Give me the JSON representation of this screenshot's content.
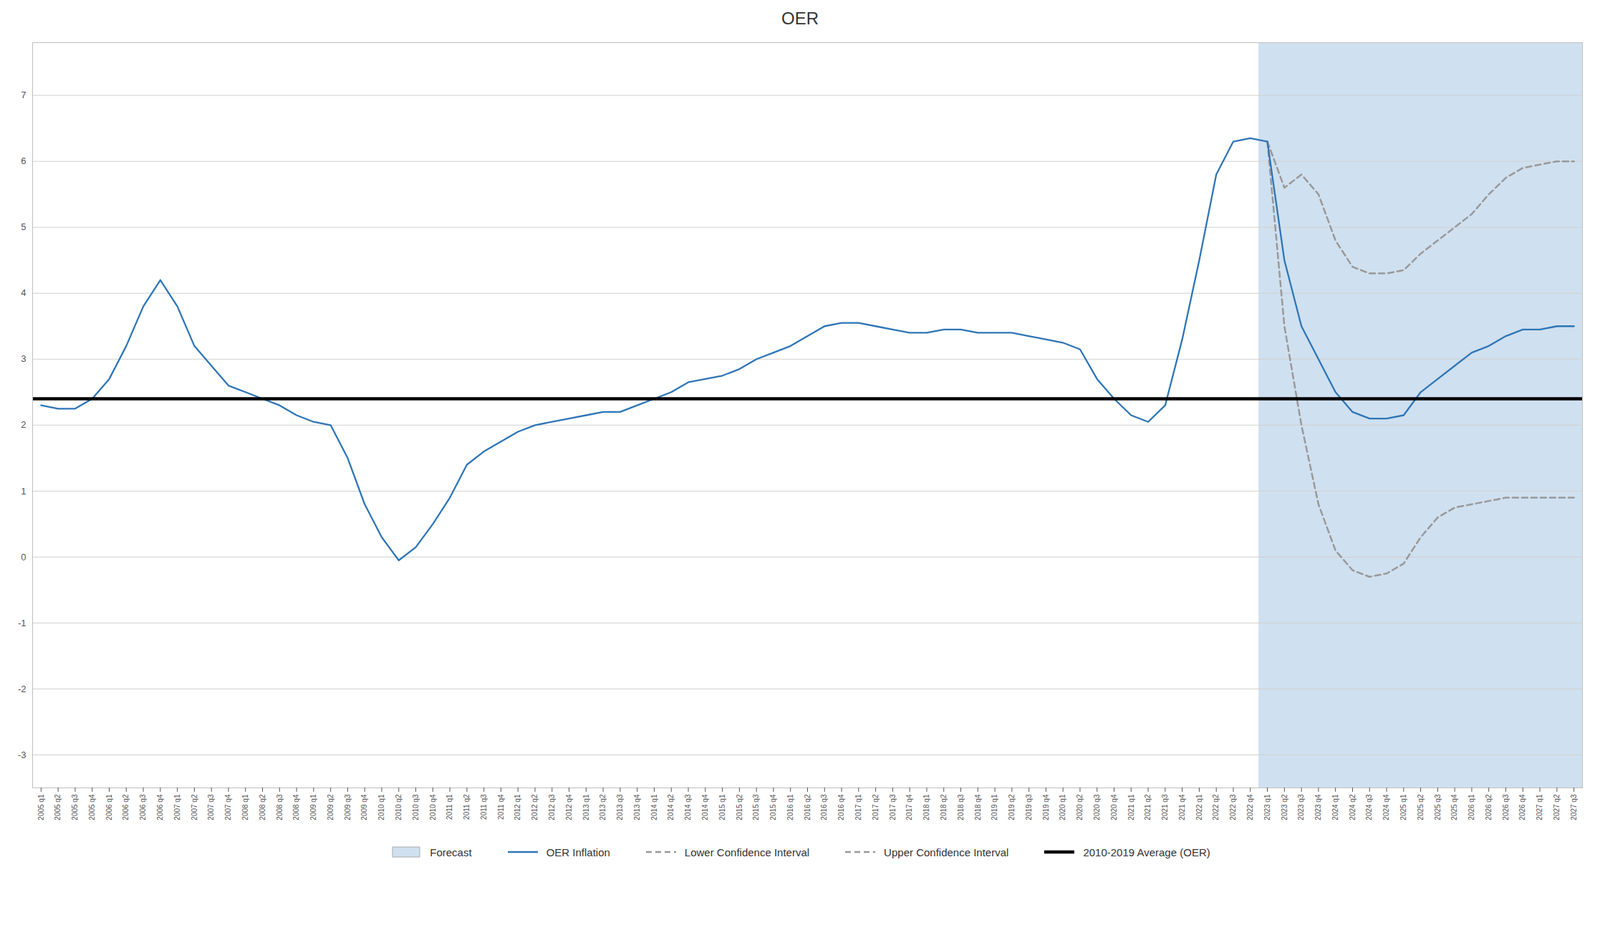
{
  "chart_data": {
    "type": "line",
    "title": "OER",
    "categories": [
      "2005 q1",
      "2005 q2",
      "2005 q3",
      "2005 q4",
      "2006 q1",
      "2006 q2",
      "2006 q3",
      "2006 q4",
      "2007 q1",
      "2007 q2",
      "2007 q3",
      "2007 q4",
      "2008 q1",
      "2008 q2",
      "2008 q3",
      "2008 q4",
      "2009 q1",
      "2009 q2",
      "2009 q3",
      "2009 q4",
      "2010 q1",
      "2010 q2",
      "2010 q3",
      "2010 q4",
      "2011 q1",
      "2011 q2",
      "2011 q3",
      "2011 q4",
      "2012 q1",
      "2012 q2",
      "2012 q3",
      "2012 q4",
      "2013 q1",
      "2013 q2",
      "2013 q3",
      "2013 q4",
      "2014 q1",
      "2014 q2",
      "2014 q3",
      "2014 q4",
      "2015 q1",
      "2015 q2",
      "2015 q3",
      "2015 q4",
      "2016 q1",
      "2016 q2",
      "2016 q3",
      "2016 q4",
      "2017 q1",
      "2017 q2",
      "2017 q3",
      "2017 q4",
      "2018 q1",
      "2018 q2",
      "2018 q3",
      "2018 q4",
      "2019 q1",
      "2019 q2",
      "2019 q3",
      "2019 q4",
      "2020 q1",
      "2020 q2",
      "2020 q3",
      "2020 q4",
      "2021 q1",
      "2021 q2",
      "2021 q3",
      "2021 q4",
      "2022 q1",
      "2022 q2",
      "2022 q3",
      "2022 q4",
      "2023 q1",
      "2023 q2",
      "2023 q3",
      "2023 q4",
      "2024 q1",
      "2024 q2",
      "2024 q3",
      "2024 q4",
      "2025 q1",
      "2025 q2",
      "2025 q3",
      "2025 q4",
      "2026 q1",
      "2026 q2",
      "2026 q3",
      "2026 q4",
      "2027 q1",
      "2027 q2",
      "2027 q3"
    ],
    "series": [
      {
        "name": "OER Inflation",
        "color": "#2e75b6",
        "line_style": "solid",
        "values": [
          2.3,
          2.25,
          2.25,
          2.4,
          2.7,
          3.2,
          3.8,
          4.2,
          3.8,
          3.2,
          2.9,
          2.6,
          2.5,
          2.4,
          2.3,
          2.15,
          2.05,
          2.0,
          1.5,
          0.8,
          0.3,
          -0.05,
          0.15,
          0.5,
          0.9,
          1.4,
          1.6,
          1.75,
          1.9,
          2.0,
          2.05,
          2.1,
          2.15,
          2.2,
          2.2,
          2.3,
          2.4,
          2.5,
          2.65,
          2.7,
          2.75,
          2.85,
          3.0,
          3.1,
          3.2,
          3.35,
          3.5,
          3.55,
          3.55,
          3.5,
          3.45,
          3.4,
          3.4,
          3.45,
          3.45,
          3.4,
          3.4,
          3.4,
          3.35,
          3.3,
          3.25,
          3.15,
          2.7,
          2.4,
          2.15,
          2.05,
          2.3,
          3.3,
          4.5,
          5.8,
          6.3,
          6.35,
          6.3,
          4.5,
          3.5,
          3.0,
          2.5,
          2.2,
          2.1,
          2.1,
          2.15,
          2.5,
          2.7,
          2.9,
          3.1,
          3.2,
          3.35,
          3.45,
          3.45,
          3.5,
          3.5
        ]
      },
      {
        "name": "Lower Confidence Interval",
        "color": "#999999",
        "line_style": "dashed",
        "values": [
          null,
          null,
          null,
          null,
          null,
          null,
          null,
          null,
          null,
          null,
          null,
          null,
          null,
          null,
          null,
          null,
          null,
          null,
          null,
          null,
          null,
          null,
          null,
          null,
          null,
          null,
          null,
          null,
          null,
          null,
          null,
          null,
          null,
          null,
          null,
          null,
          null,
          null,
          null,
          null,
          null,
          null,
          null,
          null,
          null,
          null,
          null,
          null,
          null,
          null,
          null,
          null,
          null,
          null,
          null,
          null,
          null,
          null,
          null,
          null,
          null,
          null,
          null,
          null,
          null,
          null,
          null,
          null,
          null,
          null,
          null,
          null,
          6.3,
          3.5,
          2.0,
          0.8,
          0.1,
          -0.2,
          -0.3,
          -0.25,
          -0.1,
          0.3,
          0.6,
          0.75,
          0.8,
          0.85,
          0.9,
          0.9,
          0.9,
          0.9,
          0.9
        ]
      },
      {
        "name": "Upper Confidence Interval",
        "color": "#999999",
        "line_style": "dashed",
        "values": [
          null,
          null,
          null,
          null,
          null,
          null,
          null,
          null,
          null,
          null,
          null,
          null,
          null,
          null,
          null,
          null,
          null,
          null,
          null,
          null,
          null,
          null,
          null,
          null,
          null,
          null,
          null,
          null,
          null,
          null,
          null,
          null,
          null,
          null,
          null,
          null,
          null,
          null,
          null,
          null,
          null,
          null,
          null,
          null,
          null,
          null,
          null,
          null,
          null,
          null,
          null,
          null,
          null,
          null,
          null,
          null,
          null,
          null,
          null,
          null,
          null,
          null,
          null,
          null,
          null,
          null,
          null,
          null,
          null,
          null,
          null,
          null,
          6.3,
          5.6,
          5.8,
          5.5,
          4.8,
          4.4,
          4.3,
          4.3,
          4.35,
          4.6,
          4.8,
          5.0,
          5.2,
          5.5,
          5.75,
          5.9,
          5.95,
          6.0,
          6.0
        ]
      }
    ],
    "average": {
      "name": "2010-2019 Average (OER)",
      "value": 2.4,
      "color": "#000000"
    },
    "forecast": {
      "name": "Forecast",
      "start": "2023 q1",
      "end": "2027 q3",
      "color": "#cfe0f0"
    },
    "ylim": [
      -3.5,
      7.8
    ],
    "yticks": [
      -3,
      -2,
      -1,
      0,
      1,
      2,
      3,
      4,
      5,
      6,
      7
    ],
    "grid": "y",
    "legend": "bottom"
  }
}
